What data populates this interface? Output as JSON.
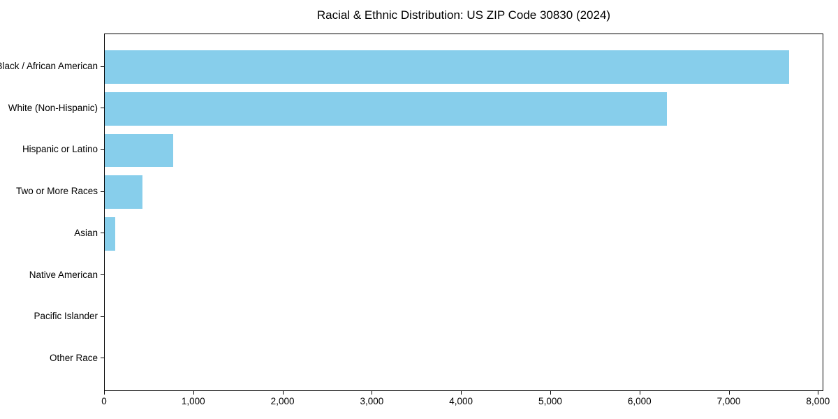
{
  "chart_data": {
    "type": "bar",
    "orientation": "horizontal",
    "title": "Racial & Ethnic Distribution: US ZIP Code 30830 (2024)",
    "categories": [
      "Black / African American",
      "White (Non-Hispanic)",
      "Hispanic or Latino",
      "Two or More Races",
      "Asian",
      "Native American",
      "Pacific Islander",
      "Other Race"
    ],
    "values": [
      7680,
      6310,
      765,
      420,
      120,
      0,
      0,
      0
    ],
    "xlabel": "",
    "ylabel": "",
    "xticks": [
      0,
      1000,
      2000,
      3000,
      4000,
      5000,
      6000,
      7000,
      8000
    ],
    "xtick_labels": [
      "0",
      "1,000",
      "2,000",
      "3,000",
      "4,000",
      "5,000",
      "6,000",
      "7,000",
      "8,000"
    ],
    "xlim": [
      0,
      8060
    ],
    "bar_color": "#87CEEB",
    "axis_color": "#000000",
    "background_color": "#FFFFFF",
    "grid": false,
    "legend": "none"
  }
}
